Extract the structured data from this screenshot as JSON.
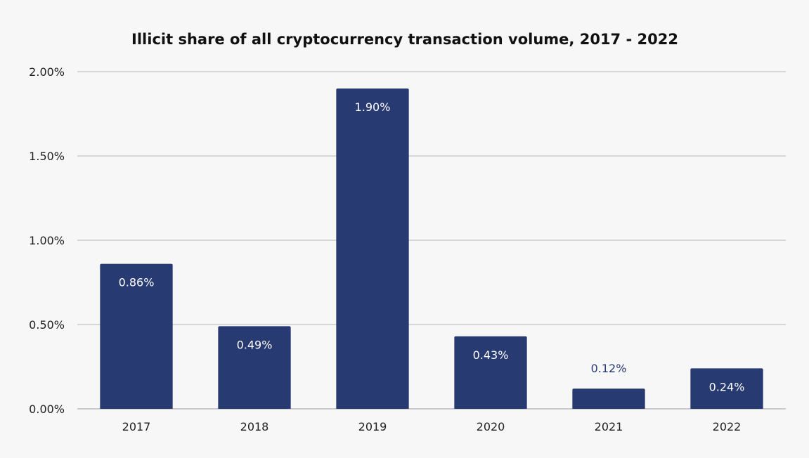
{
  "chart_data": {
    "type": "bar",
    "title": "Illicit share of all cryptocurrency transaction volume, 2017 - 2022",
    "xlabel": "",
    "ylabel": "",
    "categories": [
      "2017",
      "2018",
      "2019",
      "2020",
      "2021",
      "2022"
    ],
    "values": [
      0.86,
      0.49,
      1.9,
      0.43,
      0.12,
      0.24
    ],
    "data_labels": [
      "0.86%",
      "0.49%",
      "1.90%",
      "0.43%",
      "0.12%",
      "0.24%"
    ],
    "ylim": [
      0,
      2.0
    ],
    "yticks": [
      0,
      0.5,
      1.0,
      1.5,
      2.0
    ],
    "ytick_labels": [
      "0.00%",
      "0.50%",
      "1.00%",
      "1.50%",
      "2.00%"
    ],
    "grid": true,
    "legend": "none",
    "colors": {
      "bar": "#283a72",
      "label_inside": "#ffffff",
      "label_outside": "#283a72",
      "grid": "#d6d6d6",
      "background": "#f7f7f7"
    }
  }
}
